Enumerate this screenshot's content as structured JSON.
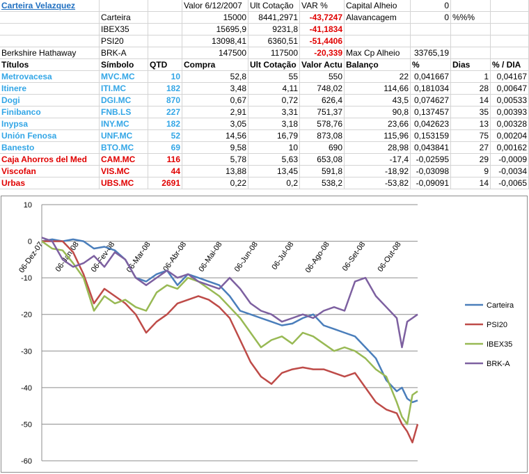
{
  "sheet": {
    "rows": [
      [
        {
          "t": "Carteira Velazquez",
          "c": "link"
        },
        "",
        "",
        "Valor 6/12/2007",
        "Ult Cotação",
        {
          "t": "VAR %",
          "a": "l"
        },
        "Capital Alheio",
        {
          "t": "0",
          "a": "r"
        },
        "",
        ""
      ],
      [
        "",
        "Carteira",
        "",
        {
          "t": "15000",
          "a": "r"
        },
        {
          "t": "8441,2971",
          "a": "r"
        },
        {
          "t": "-43,7247",
          "a": "r",
          "c": "red"
        },
        "Alavancagem",
        {
          "t": "0",
          "a": "r"
        },
        "%%%",
        ""
      ],
      [
        "",
        "IBEX35",
        "",
        {
          "t": "15695,9",
          "a": "r"
        },
        {
          "t": "9231,8",
          "a": "r"
        },
        {
          "t": "-41,1834",
          "a": "r",
          "c": "red"
        },
        "",
        "",
        "",
        ""
      ],
      [
        "",
        "PSI20",
        "",
        {
          "t": "13098,41",
          "a": "r"
        },
        {
          "t": "6360,51",
          "a": "r"
        },
        {
          "t": "-51,4406",
          "a": "r",
          "c": "red"
        },
        "",
        "",
        "",
        ""
      ],
      [
        "Berkshire Hathaway",
        "BRK-A",
        "",
        {
          "t": "147500",
          "a": "r"
        },
        {
          "t": "117500",
          "a": "r"
        },
        {
          "t": "-20,339",
          "a": "r",
          "c": "red"
        },
        "Max Cp Alheio",
        {
          "t": "33765,19",
          "a": "r"
        },
        "",
        ""
      ],
      [
        {
          "t": "Títulos",
          "c": "b"
        },
        {
          "t": "Símbolo",
          "c": "b"
        },
        {
          "t": "QTD",
          "c": "b"
        },
        {
          "t": "Compra",
          "c": "b"
        },
        {
          "t": "Ult Cotação",
          "c": "b"
        },
        {
          "t": "Valor Actu",
          "c": "b"
        },
        {
          "t": "Balanço",
          "c": "b"
        },
        {
          "t": "%",
          "c": "b"
        },
        {
          "t": "Dias",
          "c": "b"
        },
        {
          "t": "% / DIA",
          "c": "b"
        }
      ],
      [
        {
          "t": "Metrovacesa",
          "c": "blue"
        },
        {
          "t": "MVC.MC",
          "c": "blue"
        },
        {
          "t": "10",
          "a": "r",
          "c": "blue"
        },
        {
          "t": "52,8",
          "a": "r"
        },
        {
          "t": "55",
          "a": "r"
        },
        {
          "t": "550",
          "a": "r"
        },
        {
          "t": "22",
          "a": "r"
        },
        {
          "t": "0,041667",
          "a": "r"
        },
        {
          "t": "1",
          "a": "r"
        },
        {
          "t": "0,04167",
          "a": "r"
        }
      ],
      [
        {
          "t": "Itinere",
          "c": "blue"
        },
        {
          "t": "ITI.MC",
          "c": "blue"
        },
        {
          "t": "182",
          "a": "r",
          "c": "blue"
        },
        {
          "t": "3,48",
          "a": "r"
        },
        {
          "t": "4,11",
          "a": "r"
        },
        {
          "t": "748,02",
          "a": "r"
        },
        {
          "t": "114,66",
          "a": "r"
        },
        {
          "t": "0,181034",
          "a": "r"
        },
        {
          "t": "28",
          "a": "r"
        },
        {
          "t": "0,00647",
          "a": "r"
        }
      ],
      [
        {
          "t": "Dogi",
          "c": "blue"
        },
        {
          "t": "DGI.MC",
          "c": "blue"
        },
        {
          "t": "870",
          "a": "r",
          "c": "blue"
        },
        {
          "t": "0,67",
          "a": "r"
        },
        {
          "t": "0,72",
          "a": "r"
        },
        {
          "t": "626,4",
          "a": "r"
        },
        {
          "t": "43,5",
          "a": "r"
        },
        {
          "t": "0,074627",
          "a": "r"
        },
        {
          "t": "14",
          "a": "r"
        },
        {
          "t": "0,00533",
          "a": "r"
        }
      ],
      [
        {
          "t": "Finibanco",
          "c": "blue"
        },
        {
          "t": "FNB.LS",
          "c": "blue"
        },
        {
          "t": "227",
          "a": "r",
          "c": "blue"
        },
        {
          "t": "2,91",
          "a": "r"
        },
        {
          "t": "3,31",
          "a": "r"
        },
        {
          "t": "751,37",
          "a": "r"
        },
        {
          "t": "90,8",
          "a": "r"
        },
        {
          "t": "0,137457",
          "a": "r"
        },
        {
          "t": "35",
          "a": "r"
        },
        {
          "t": "0,00393",
          "a": "r"
        }
      ],
      [
        {
          "t": "Inypsa",
          "c": "blue"
        },
        {
          "t": "INY.MC",
          "c": "blue"
        },
        {
          "t": "182",
          "a": "r",
          "c": "blue"
        },
        {
          "t": "3,05",
          "a": "r"
        },
        {
          "t": "3,18",
          "a": "r"
        },
        {
          "t": "578,76",
          "a": "r"
        },
        {
          "t": "23,66",
          "a": "r"
        },
        {
          "t": "0,042623",
          "a": "r"
        },
        {
          "t": "13",
          "a": "r"
        },
        {
          "t": "0,00328",
          "a": "r"
        }
      ],
      [
        {
          "t": "Unión Fenosa",
          "c": "blue"
        },
        {
          "t": "UNF.MC",
          "c": "blue"
        },
        {
          "t": "52",
          "a": "r",
          "c": "blue"
        },
        {
          "t": "14,56",
          "a": "r"
        },
        {
          "t": "16,79",
          "a": "r"
        },
        {
          "t": "873,08",
          "a": "r"
        },
        {
          "t": "115,96",
          "a": "r"
        },
        {
          "t": "0,153159",
          "a": "r"
        },
        {
          "t": "75",
          "a": "r"
        },
        {
          "t": "0,00204",
          "a": "r"
        }
      ],
      [
        {
          "t": "Banesto",
          "c": "blue"
        },
        {
          "t": "BTO.MC",
          "c": "blue"
        },
        {
          "t": "69",
          "a": "r",
          "c": "blue"
        },
        {
          "t": "9,58",
          "a": "r"
        },
        {
          "t": "10",
          "a": "r"
        },
        {
          "t": "690",
          "a": "r"
        },
        {
          "t": "28,98",
          "a": "r"
        },
        {
          "t": "0,043841",
          "a": "r"
        },
        {
          "t": "27",
          "a": "r"
        },
        {
          "t": "0,00162",
          "a": "r"
        }
      ],
      [
        {
          "t": "Caja Ahorros del Med",
          "c": "red"
        },
        {
          "t": "CAM.MC",
          "c": "red"
        },
        {
          "t": "116",
          "a": "r",
          "c": "red"
        },
        {
          "t": "5,78",
          "a": "r"
        },
        {
          "t": "5,63",
          "a": "r"
        },
        {
          "t": "653,08",
          "a": "r"
        },
        {
          "t": "-17,4",
          "a": "r"
        },
        {
          "t": "-0,02595",
          "a": "r"
        },
        {
          "t": "29",
          "a": "r"
        },
        {
          "t": "-0,0009",
          "a": "r"
        }
      ],
      [
        {
          "t": "Viscofan",
          "c": "red"
        },
        {
          "t": "VIS.MC",
          "c": "red"
        },
        {
          "t": "44",
          "a": "r",
          "c": "red"
        },
        {
          "t": "13,88",
          "a": "r"
        },
        {
          "t": "13,45",
          "a": "r"
        },
        {
          "t": "591,8",
          "a": "r"
        },
        {
          "t": "-18,92",
          "a": "r"
        },
        {
          "t": "-0,03098",
          "a": "r"
        },
        {
          "t": "9",
          "a": "r"
        },
        {
          "t": "-0,0034",
          "a": "r"
        }
      ],
      [
        {
          "t": "Urbas",
          "c": "red"
        },
        {
          "t": "UBS.MC",
          "c": "red"
        },
        {
          "t": "2691",
          "a": "r",
          "c": "red"
        },
        {
          "t": "0,22",
          "a": "r"
        },
        {
          "t": "0,2",
          "a": "r"
        },
        {
          "t": "538,2",
          "a": "r"
        },
        {
          "t": "-53,82",
          "a": "r"
        },
        {
          "t": "-0,09091",
          "a": "r"
        },
        {
          "t": "14",
          "a": "r"
        },
        {
          "t": "-0,0065",
          "a": "r"
        }
      ]
    ]
  },
  "chart_data": {
    "type": "line",
    "ylim": [
      -60,
      10
    ],
    "y_ticks": [
      10,
      0,
      -10,
      -20,
      -30,
      -40,
      -50,
      -60
    ],
    "x_tick_labels": [
      "06-Dez-07",
      "06-Jan-08",
      "06-Fev-08",
      "06-Mar-08",
      "06-Abr-08",
      "06-Mai-08",
      "06-Jun-08",
      "06-Jul-08",
      "06-Ago-08",
      "06-Set-08",
      "06-Out-08"
    ],
    "x_range": [
      0,
      360
    ],
    "grid": true,
    "legend_position": "right",
    "series": [
      {
        "name": "Carteira",
        "color": "#4a7ebb",
        "x": [
          0,
          10,
          20,
          30,
          40,
          50,
          60,
          70,
          80,
          90,
          100,
          110,
          120,
          130,
          140,
          150,
          160,
          170,
          180,
          190,
          200,
          210,
          220,
          230,
          240,
          250,
          260,
          270,
          280,
          290,
          300,
          310,
          320,
          330,
          340,
          345,
          350,
          355,
          360
        ],
        "y": [
          0,
          0.5,
          0,
          0.5,
          0,
          -2,
          -1.5,
          -2.5,
          -5,
          -10,
          -11,
          -9,
          -8,
          -12,
          -9,
          -10,
          -11,
          -12,
          -15,
          -19,
          -20,
          -21,
          -22,
          -23,
          -22.5,
          -21,
          -20,
          -23,
          -24,
          -25,
          -26,
          -29,
          -32,
          -38,
          -41,
          -40,
          -43,
          -44,
          -43.5
        ]
      },
      {
        "name": "PSI20",
        "color": "#be4b48",
        "x": [
          0,
          10,
          20,
          30,
          40,
          50,
          60,
          70,
          80,
          90,
          100,
          110,
          120,
          130,
          140,
          150,
          160,
          170,
          180,
          190,
          200,
          210,
          220,
          230,
          240,
          250,
          260,
          270,
          280,
          290,
          300,
          310,
          320,
          330,
          340,
          345,
          350,
          355,
          360
        ],
        "y": [
          0,
          0,
          0,
          -3,
          -9,
          -17,
          -13,
          -15,
          -17,
          -20,
          -25,
          -22,
          -20,
          -17,
          -16,
          -15,
          -16,
          -18,
          -21,
          -27,
          -33,
          -37,
          -39,
          -36,
          -35,
          -34.5,
          -35,
          -35,
          -36,
          -37,
          -36,
          -40,
          -44,
          -46,
          -47,
          -50,
          -52,
          -55,
          -50
        ]
      },
      {
        "name": "IBEX35",
        "color": "#98b954",
        "x": [
          0,
          10,
          20,
          30,
          40,
          50,
          60,
          70,
          80,
          90,
          100,
          110,
          120,
          130,
          140,
          150,
          160,
          170,
          180,
          190,
          200,
          210,
          220,
          230,
          240,
          250,
          260,
          270,
          280,
          290,
          300,
          310,
          320,
          330,
          340,
          345,
          350,
          355,
          360
        ],
        "y": [
          0,
          -2,
          -2.5,
          -6,
          -10,
          -19,
          -15,
          -17,
          -16,
          -18,
          -19,
          -14,
          -12,
          -13,
          -10,
          -11,
          -13,
          -15,
          -18,
          -21,
          -25,
          -29,
          -27,
          -26,
          -28,
          -25,
          -26,
          -28,
          -30,
          -29,
          -30,
          -32,
          -35,
          -37,
          -44,
          -48,
          -50,
          -42,
          -41
        ]
      },
      {
        "name": "BRK-A",
        "color": "#7d60a0",
        "x": [
          0,
          10,
          20,
          30,
          40,
          50,
          60,
          70,
          80,
          90,
          100,
          110,
          120,
          130,
          140,
          150,
          160,
          170,
          180,
          190,
          200,
          210,
          220,
          230,
          240,
          250,
          260,
          270,
          280,
          290,
          300,
          310,
          320,
          330,
          340,
          345,
          350,
          355,
          360
        ],
        "y": [
          1,
          0,
          -5,
          -7,
          -6,
          -4,
          -7,
          -3,
          -5,
          -10,
          -12,
          -10,
          -8,
          -10,
          -9,
          -11,
          -12,
          -13,
          -10,
          -13,
          -17,
          -19,
          -20,
          -22,
          -21,
          -20,
          -21,
          -19,
          -18,
          -19,
          -11,
          -10,
          -15,
          -18,
          -21,
          -29,
          -22,
          -21,
          -20
        ]
      }
    ]
  }
}
